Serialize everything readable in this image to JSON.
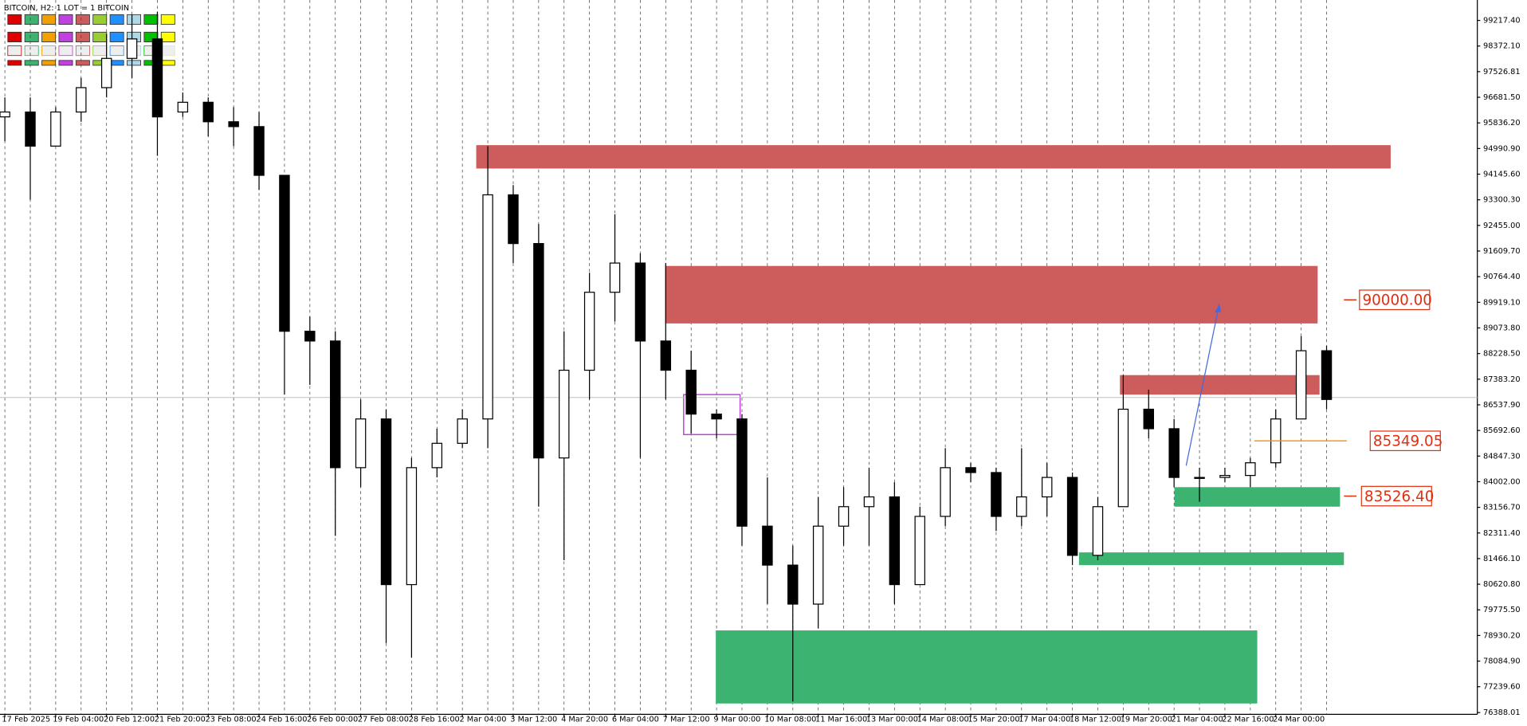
{
  "chart_data": {
    "type": "candlestick",
    "title": "BITCOIN, H2:  1 LOT = 1 BITCOIN",
    "categories": [
      "17 Feb 2025",
      null,
      "19 Feb 04:00",
      null,
      "20 Feb 12:00",
      null,
      "21 Feb 20:00",
      null,
      "23 Feb 08:00",
      null,
      "24 Feb 16:00",
      null,
      "26 Feb 00:00",
      null,
      "27 Feb 08:00",
      null,
      "28 Feb 16:00",
      null,
      "2 Mar 04:00",
      null,
      "3 Mar 12:00",
      null,
      "4 Mar 20:00",
      null,
      "6 Mar 04:00",
      null,
      "7 Mar 12:00",
      null,
      "9 Mar 00:00",
      null,
      "10 Mar 08:00",
      null,
      "11 Mar 16:00",
      null,
      "13 Mar 00:00",
      null,
      "14 Mar 08:00",
      null,
      "15 Mar 20:00",
      null,
      "17 Mar 04:00",
      null,
      "18 Mar 12:00",
      null,
      "19 Mar 20:00",
      null,
      "21 Mar 04:00",
      null,
      "22 Mar 16:00",
      null,
      "24 Mar 00:00",
      null,
      null
    ],
    "open": [
      96035,
      96196,
      95071,
      96196,
      96999,
      97964,
      98606,
      96196,
      96517,
      95874,
      95714,
      94107,
      88964,
      88643,
      84465,
      86072,
      80608,
      84465,
      85268,
      86072,
      93464,
      91857,
      84786,
      87679,
      90250,
      91214,
      88643,
      87679,
      86232,
      86072,
      82536,
      81251,
      79965,
      82536,
      83179,
      83501,
      80608,
      82858,
      84465,
      84304,
      82858,
      83501,
      84143,
      81573,
      83179,
      86393,
      85750,
      84143,
      84143,
      84208,
      84626,
      86072,
      88322
    ],
    "high": [
      96678,
      96678,
      96357,
      97321,
      98767,
      99410,
      99506,
      96839,
      96678,
      96357,
      96196,
      94107,
      89447,
      88964,
      86715,
      86393,
      84786,
      85750,
      86393,
      95071,
      93785,
      92500,
      88964,
      90893,
      92821,
      91536,
      91214,
      88322,
      86393,
      86232,
      84143,
      81894,
      83501,
      83822,
      84465,
      83983,
      83179,
      85108,
      84626,
      84465,
      85108,
      84626,
      84304,
      83501,
      87518,
      87036,
      86072,
      84465,
      84465,
      84786,
      86393,
      88804,
      88482
    ],
    "low": [
      95232,
      93303,
      95071,
      95874,
      96678,
      97321,
      94750,
      96035,
      95392,
      95071,
      93625,
      86875,
      87197,
      82215,
      83822,
      78680,
      78198,
      84143,
      85108,
      85108,
      91214,
      83179,
      81412,
      86715,
      89286,
      84786,
      86715,
      85589,
      85429,
      81894,
      79965,
      76752,
      79161,
      81894,
      81894,
      79965,
      80608,
      82536,
      83983,
      82376,
      82536,
      82858,
      81251,
      81412,
      83179,
      85429,
      83822,
      83340,
      83983,
      83822,
      84465,
      86072,
      86393
    ],
    "close": [
      96196,
      95071,
      96196,
      96999,
      97964,
      98606,
      96035,
      96517,
      95874,
      95714,
      94107,
      88964,
      88643,
      84465,
      86072,
      80608,
      84465,
      85268,
      86072,
      93464,
      91857,
      84786,
      87679,
      90250,
      91214,
      88643,
      87679,
      86232,
      86072,
      82536,
      81251,
      79965,
      82536,
      83179,
      83501,
      80608,
      82858,
      84465,
      84304,
      82858,
      83501,
      84143,
      81573,
      83179,
      86393,
      85750,
      84143,
      84143,
      84208,
      84626,
      86072,
      88322,
      86715
    ],
    "color": "#000000",
    "ylim": [
      76330,
      99890
    ],
    "yticks": [
      {
        "value": 99217.4,
        "label": "99217.40"
      },
      {
        "value": 98372.1,
        "label": "98372.10"
      },
      {
        "value": 97526.81,
        "label": "97526.81"
      },
      {
        "value": 96681.5,
        "label": "96681.50"
      },
      {
        "value": 95836.2,
        "label": "95836.20"
      },
      {
        "value": 94990.9,
        "label": "94990.90"
      },
      {
        "value": 94145.6,
        "label": "94145.60"
      },
      {
        "value": 93300.3,
        "label": "93300.30"
      },
      {
        "value": 92455,
        "label": "92455.00"
      },
      {
        "value": 91609.7,
        "label": "91609.70"
      },
      {
        "value": 90764.4,
        "label": "90764.40"
      },
      {
        "value": 89919.1,
        "label": "89919.10"
      },
      {
        "value": 89073.8,
        "label": "89073.80"
      },
      {
        "value": 88228.5,
        "label": "88228.50"
      },
      {
        "value": 87383.2,
        "label": "87383.20"
      },
      {
        "value": 86537.9,
        "label": "86537.90"
      },
      {
        "value": 85692.6,
        "label": "85692.60"
      },
      {
        "value": 84847.3,
        "label": "84847.30"
      },
      {
        "value": 84002,
        "label": "84002.00"
      },
      {
        "value": 83156.7,
        "label": "83156.70"
      },
      {
        "value": 82311.4,
        "label": "82311.40"
      },
      {
        "value": 81466.1,
        "label": "81466.10"
      },
      {
        "value": 80620.8,
        "label": "80620.80"
      },
      {
        "value": 79775.5,
        "label": "79775.50"
      },
      {
        "value": 78930.2,
        "label": "78930.20"
      },
      {
        "value": 78084.9,
        "label": "78084.90"
      },
      {
        "value": 77239.6,
        "label": "77239.60"
      },
      {
        "value": 76388.01,
        "label": "76388.01"
      }
    ],
    "current_price": 86780,
    "zones": [
      {
        "top": 95103,
        "bottom": 94332,
        "color": "#cd5c5c"
      },
      {
        "top": 91118,
        "bottom": 89222,
        "color": "#cd5c5c"
      },
      {
        "top": 87518,
        "bottom": 86875,
        "color": "#cd5c5c"
      },
      {
        "top": 83822,
        "bottom": 83179,
        "color": "#3cb371"
      },
      {
        "top": 81670,
        "bottom": 81251,
        "color": "#3cb371"
      },
      {
        "top": 79097,
        "bottom": 76687,
        "color": "#3cb371"
      }
    ],
    "box": {
      "top": 86875,
      "bottom": 85557,
      "color": "#c040e0"
    },
    "levels": [
      {
        "value": 90000,
        "label": "90000.00",
        "color": "#e03010"
      },
      {
        "value": 85349.05,
        "label": "85349.05",
        "color": "#ff8c00"
      },
      {
        "value": 83526.4,
        "label": "83526.40",
        "color": "#e03010"
      }
    ],
    "arrow": {
      "values": [
        84530,
        89860
      ],
      "color": "#4169e1"
    }
  }
}
